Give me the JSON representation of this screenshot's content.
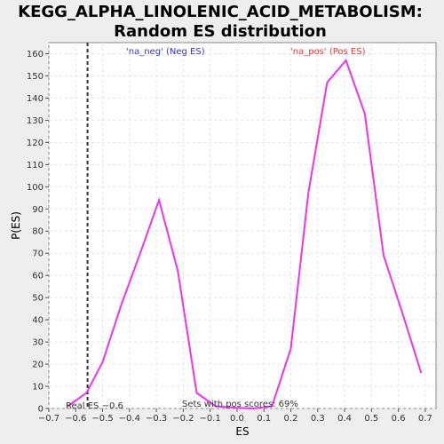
{
  "chart_data": {
    "type": "line",
    "title_line1": "KEGG_ALPHA_LINOLENIC_ACID_METABOLISM:",
    "title_line2": "Random ES distribution",
    "xlabel": "ES",
    "ylabel": "P(ES)",
    "xlim": [
      -0.7,
      0.74
    ],
    "ylim": [
      0,
      165
    ],
    "xticks": [
      -0.7,
      -0.6,
      -0.5,
      -0.4,
      -0.3,
      -0.2,
      -0.1,
      0.0,
      0.1,
      0.2,
      0.3,
      0.4,
      0.5,
      0.6,
      0.7
    ],
    "xtick_labels": [
      "−0.7",
      "−0.6",
      "−0.5",
      "−0.4",
      "−0.3",
      "−0.2",
      "−0.1",
      "0.0",
      "0.1",
      "0.2",
      "0.3",
      "0.4",
      "0.5",
      "0.6",
      "0.7"
    ],
    "yticks": [
      0,
      10,
      20,
      30,
      40,
      50,
      60,
      70,
      80,
      90,
      100,
      110,
      120,
      130,
      140,
      150,
      160
    ],
    "grid": true,
    "series": [
      {
        "color": "#ee33ee",
        "x": [
          -0.63,
          -0.56,
          -0.5,
          -0.43,
          -0.36,
          -0.29,
          -0.22,
          -0.15,
          -0.08,
          0.0,
          0.06,
          0.13,
          0.2,
          0.265,
          0.335,
          0.405,
          0.475,
          0.545,
          0.615,
          0.685
        ],
        "y": [
          1,
          7,
          21,
          47,
          70,
          94,
          62,
          7,
          1,
          0.3,
          0,
          1,
          27,
          97,
          147,
          157,
          133,
          69,
          43,
          16
        ]
      }
    ],
    "real_es": -0.556,
    "real_es_label": "Real ES −0.6",
    "legend_neg": "'na_neg' (Neg ES)",
    "legend_pos": "'na_pos' (Pos ES)",
    "legend_neg_color": "#3333cc",
    "legend_pos_color": "#ee3333",
    "annotation": "Sets with pos scores: 69%"
  }
}
